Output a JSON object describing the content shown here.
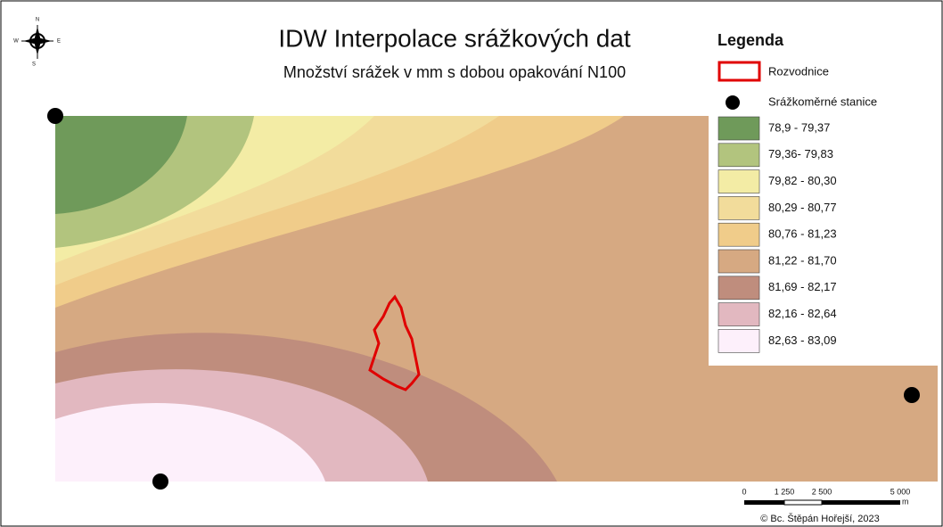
{
  "title": "IDW Interpolace srážkových dat",
  "subtitle": "Množství srážek v mm s dobou opakování N100",
  "compass": {
    "n": "N",
    "w": "W",
    "e": "E",
    "s": "S"
  },
  "legend": {
    "title": "Legenda",
    "watershed": "Rozvodnice",
    "stations": "Srážkoměrné stanice",
    "classes": [
      {
        "label": "78,9 - 79,37",
        "color": "#6f9a5a"
      },
      {
        "label": "79,36- 79,83",
        "color": "#b2c47e"
      },
      {
        "label": "79,82 - 80,30",
        "color": "#f3eca5"
      },
      {
        "label": "80,29 - 80,77",
        "color": "#f2dc9b"
      },
      {
        "label": "80,76 - 81,23",
        "color": "#f0cc8a"
      },
      {
        "label": "81,22 - 81,70",
        "color": "#d6a982"
      },
      {
        "label": "81,69 - 82,17",
        "color": "#bf8d7d"
      },
      {
        "label": "82,16 - 82,64",
        "color": "#e2b8c0"
      },
      {
        "label": "82,63 - 83,09",
        "color": "#fdf0fb"
      }
    ]
  },
  "scale": {
    "labels": [
      "0",
      "1 250",
      "2 500",
      "5 000"
    ],
    "unit": "m"
  },
  "credit": "© Bc. Štěpán Hořejší, 2023"
}
